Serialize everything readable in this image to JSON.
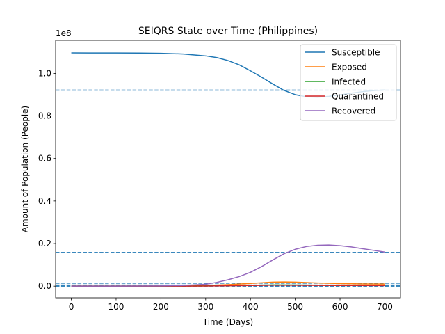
{
  "chart_data": {
    "type": "line",
    "title": "SEIQRS State over Time (Philippines)",
    "xlabel": "Time (Days)",
    "ylabel": "Amount of Population (People)",
    "y_offset_label": "1e8",
    "xlim": [
      -35,
      735
    ],
    "ylim": [
      -5500000,
      115500000
    ],
    "x_ticks": [
      0,
      100,
      200,
      300,
      400,
      500,
      600,
      700
    ],
    "x_tick_labels": [
      "0",
      "100",
      "200",
      "300",
      "400",
      "500",
      "600",
      "700"
    ],
    "y_ticks": [
      0,
      20000000,
      40000000,
      60000000,
      80000000,
      100000000
    ],
    "y_tick_labels": [
      "0.0",
      "0.2",
      "0.4",
      "0.6",
      "0.8",
      "1.0"
    ],
    "grid": false,
    "legend_position": "top-right",
    "series": [
      {
        "name": "Susceptible",
        "color": "#1f77b4",
        "x": [
          0,
          50,
          100,
          150,
          200,
          250,
          300,
          325,
          350,
          375,
          400,
          425,
          450,
          475,
          500,
          525,
          550,
          575,
          600,
          625,
          650,
          675,
          700
        ],
        "values": [
          109600000,
          109590000,
          109570000,
          109520000,
          109400000,
          109100000,
          108200000,
          107400000,
          106000000,
          104000000,
          101200000,
          98200000,
          95000000,
          92000000,
          90000000,
          89000000,
          88800000,
          89200000,
          89900000,
          90700000,
          91400000,
          91900000,
          92200000
        ]
      },
      {
        "name": "Exposed",
        "color": "#ff7f0e",
        "x": [
          0,
          100,
          200,
          300,
          350,
          400,
          450,
          475,
          500,
          550,
          600,
          650,
          700
        ],
        "values": [
          0,
          10000,
          60000,
          300000,
          700000,
          1300000,
          1900000,
          2000000,
          1900000,
          1500000,
          1200000,
          1050000,
          1000000
        ]
      },
      {
        "name": "Infected",
        "color": "#2ca02c",
        "x": [
          0,
          100,
          200,
          300,
          400,
          450,
          500,
          550,
          600,
          700
        ],
        "values": [
          0,
          5000,
          20000,
          100000,
          400000,
          600000,
          550000,
          450000,
          380000,
          330000
        ]
      },
      {
        "name": "Quarantined",
        "color": "#d62728",
        "x": [
          0,
          100,
          200,
          300,
          400,
          450,
          500,
          550,
          600,
          700
        ],
        "values": [
          0,
          3000,
          15000,
          80000,
          300000,
          450000,
          420000,
          350000,
          300000,
          260000
        ]
      },
      {
        "name": "Recovered",
        "color": "#9467bd",
        "x": [
          0,
          100,
          200,
          250,
          300,
          325,
          350,
          375,
          400,
          425,
          450,
          475,
          500,
          525,
          550,
          575,
          600,
          625,
          650,
          675,
          700
        ],
        "values": [
          0,
          10000,
          100000,
          300000,
          900000,
          1800000,
          3000000,
          4500000,
          6500000,
          9200000,
          12300000,
          15200000,
          17300000,
          18600000,
          19200000,
          19300000,
          19000000,
          18400000,
          17600000,
          16800000,
          16000000
        ]
      }
    ],
    "reference_lines": [
      {
        "color": "#1f77b4",
        "style": "dashed",
        "y": 92100000
      },
      {
        "color": "#1f77b4",
        "style": "dashed",
        "y": 15800000
      },
      {
        "color": "#1f77b4",
        "style": "dashed",
        "y": 1400000
      },
      {
        "color": "#1f77b4",
        "style": "dashed",
        "y": 500000
      },
      {
        "color": "#1f77b4",
        "style": "dashed",
        "y": 0
      }
    ]
  }
}
